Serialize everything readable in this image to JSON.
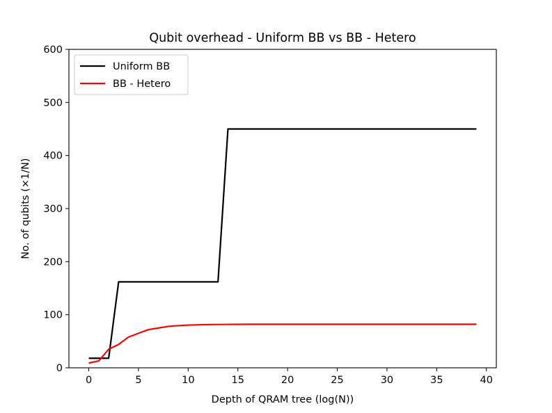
{
  "chart_data": {
    "type": "line",
    "title": "Qubit overhead - Uniform BB vs BB - Hetero",
    "xlabel": "Depth of QRAM tree (log(N))",
    "ylabel": "No. of qubits (×1/N)",
    "xlim": [
      -2,
      41
    ],
    "ylim": [
      0,
      600
    ],
    "xticks": [
      "0",
      "5",
      "10",
      "15",
      "20",
      "25",
      "30",
      "35",
      "40"
    ],
    "yticks": [
      "0",
      "100",
      "200",
      "300",
      "400",
      "500",
      "600"
    ],
    "grid": false,
    "legend": "top-left",
    "series": [
      {
        "name": "Uniform BB",
        "color": "#000000",
        "x": [
          0,
          1,
          2,
          3,
          4,
          5,
          6,
          7,
          8,
          9,
          10,
          11,
          12,
          13,
          14,
          15,
          16,
          17,
          18,
          19,
          20,
          21,
          22,
          23,
          24,
          25,
          26,
          27,
          28,
          29,
          30,
          31,
          32,
          33,
          34,
          35,
          36,
          37,
          38,
          39
        ],
        "y": [
          18,
          18,
          18,
          162,
          162,
          162,
          162,
          162,
          162,
          162,
          162,
          162,
          162,
          162,
          450,
          450,
          450,
          450,
          450,
          450,
          450,
          450,
          450,
          450,
          450,
          450,
          450,
          450,
          450,
          450,
          450,
          450,
          450,
          450,
          450,
          450,
          450,
          450,
          450,
          450
        ]
      },
      {
        "name": "BB - Hetero",
        "color": "#ff0000",
        "x": [
          0,
          1,
          2,
          3,
          4,
          5,
          6,
          7,
          8,
          9,
          10,
          11,
          12,
          13,
          14,
          15,
          16,
          17,
          18,
          19,
          20,
          21,
          22,
          23,
          24,
          25,
          26,
          27,
          28,
          29,
          30,
          31,
          32,
          33,
          34,
          35,
          36,
          37,
          38,
          39
        ],
        "y": [
          9,
          13,
          35,
          44,
          58,
          65,
          72,
          75,
          78,
          79.5,
          80.5,
          81,
          81.4,
          81.6,
          81.8,
          81.9,
          82,
          82,
          82,
          82,
          82,
          82,
          82,
          82,
          82,
          82,
          82,
          82,
          82,
          82,
          82,
          82,
          82,
          82,
          82,
          82,
          82,
          82,
          82,
          82
        ]
      }
    ]
  }
}
